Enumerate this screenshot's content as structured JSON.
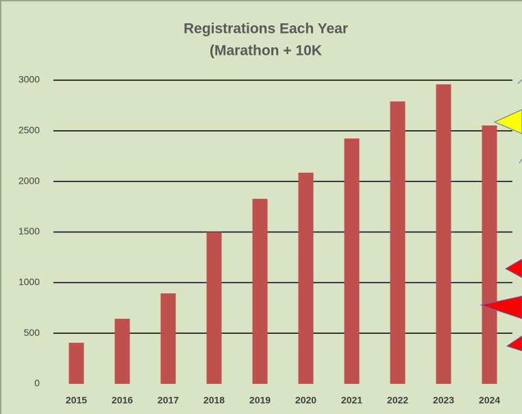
{
  "chart_data": {
    "type": "bar",
    "title": "Registrations Each Year",
    "subtitle": "(Marathon + 10K",
    "categories": [
      "2015",
      "2016",
      "2017",
      "2018",
      "2019",
      "2020",
      "2021",
      "2022",
      "2023",
      "2024"
    ],
    "values": [
      406,
      643,
      894,
      1500,
      1828,
      2086,
      2424,
      2790,
      2959,
      2553
    ],
    "color": "#c0504d",
    "ylim": [
      0,
      3000
    ],
    "yticks": [
      0,
      500,
      1000,
      1500,
      2000,
      2500,
      3000
    ],
    "grid": true
  }
}
